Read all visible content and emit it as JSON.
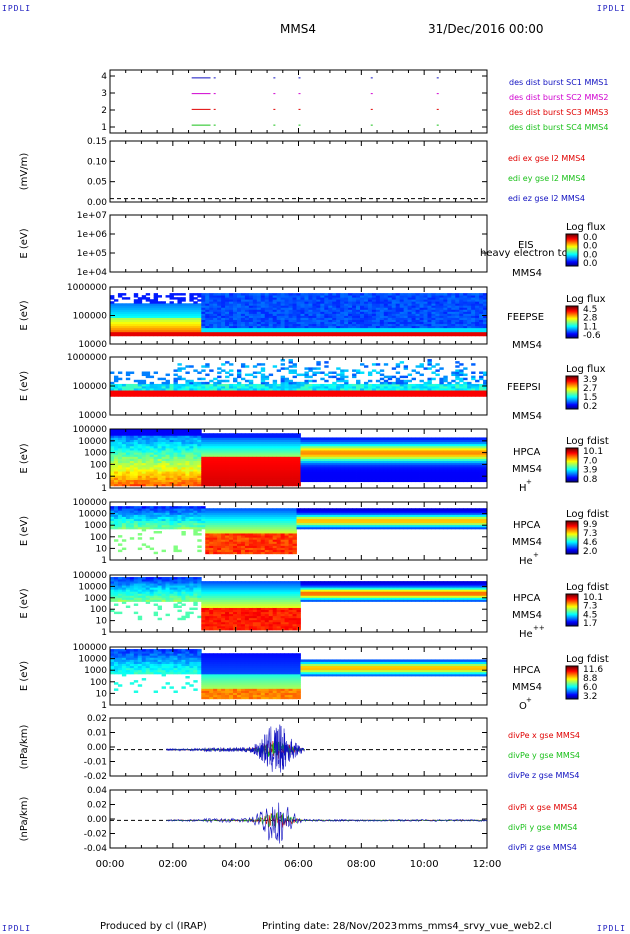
{
  "corner_label": "IPDLI",
  "header": {
    "spacecraft": "MMS4",
    "date": "31/Dec/2016 00:00"
  },
  "footer": {
    "producer": "Produced by cl (IRAP)",
    "printing": "Printing date: 28/Nov/2023",
    "script": "mms_mms4_srvy_vue_web2.cl"
  },
  "colors": {
    "red": "#e00000",
    "green": "#18c018",
    "blue": "#1010c0",
    "magenta": "#d000d0",
    "dashed": "#000000"
  },
  "chart_data": {
    "type": "multi-panel",
    "x_range_hours": [
      0,
      12
    ],
    "x_ticks": [
      "00:00",
      "02:00",
      "04:00",
      "06:00",
      "08:00",
      "10:00",
      "12:00"
    ],
    "panels": [
      {
        "id": "burst",
        "type": "line",
        "ylabel": "",
        "yticks": [
          "4",
          "3",
          "2",
          "1"
        ],
        "ylim": [
          0.5,
          4.5
        ],
        "series": [
          {
            "name": "des dist burst SC1 MMS1",
            "y": 4,
            "color": "blue",
            "intervals": [
              [
                2.6,
                3.2
              ],
              [
                3.3,
                3.35
              ],
              [
                5.2,
                5.25
              ],
              [
                6.0,
                6.05
              ],
              [
                8.3,
                8.35
              ],
              [
                10.4,
                10.45
              ]
            ]
          },
          {
            "name": "des dist burst SC2 MMS2",
            "y": 3,
            "color": "magenta",
            "intervals": [
              [
                2.6,
                3.2
              ],
              [
                3.3,
                3.35
              ],
              [
                5.2,
                5.25
              ],
              [
                6.0,
                6.05
              ],
              [
                8.3,
                8.35
              ],
              [
                10.4,
                10.45
              ]
            ]
          },
          {
            "name": "des dist burst SC3 MMS3",
            "y": 2,
            "color": "red",
            "intervals": [
              [
                2.6,
                3.2
              ],
              [
                3.3,
                3.35
              ],
              [
                5.2,
                5.25
              ],
              [
                6.0,
                6.05
              ],
              [
                8.3,
                8.35
              ],
              [
                10.4,
                10.45
              ]
            ]
          },
          {
            "name": "des dist burst SC4 MMS4",
            "y": 1,
            "color": "green",
            "intervals": [
              [
                2.6,
                3.2
              ],
              [
                3.3,
                3.35
              ],
              [
                5.2,
                5.25
              ],
              [
                6.0,
                6.05
              ],
              [
                8.3,
                8.35
              ],
              [
                10.4,
                10.45
              ]
            ]
          }
        ],
        "legend_colors_topdown": [
          "blue",
          "magenta",
          "red",
          "green"
        ]
      },
      {
        "id": "edi",
        "type": "line",
        "ylabel": "(mV/m)",
        "yticks": [
          "0.15",
          "0.10",
          "0.05",
          "0.00"
        ],
        "ylim": [
          -0.01,
          0.17
        ],
        "series": [
          {
            "name": "edi ex gse l2 MMS4",
            "color": "red"
          },
          {
            "name": "edi ey gse l2 MMS4",
            "color": "green"
          },
          {
            "name": "edi ez gse l2 MMS4",
            "color": "blue"
          }
        ]
      },
      {
        "id": "eis",
        "type": "heatmap",
        "ylabel": "E (eV)",
        "yticks": [
          "1e+07",
          "1e+06",
          "1e+05",
          "1e+04"
        ],
        "label": [
          "EIS",
          "MMS4"
        ],
        "overlay_text": "heavy electron to",
        "cbar_title": "Log flux",
        "cbar_ticks": [
          "0.0",
          "0.0",
          "0.0",
          "0.0"
        ],
        "profile": "empty"
      },
      {
        "id": "feeps_e",
        "type": "heatmap",
        "ylabel": "E (eV)",
        "yticks": [
          "1000000",
          "100000",
          "10000"
        ],
        "label": [
          "FEEPSE",
          "MMS4"
        ],
        "cbar_title": "Log flux",
        "cbar_ticks": [
          "4.5",
          "2.8",
          "1.1",
          "-0.6"
        ],
        "profile": "feepse"
      },
      {
        "id": "feeps_i",
        "type": "heatmap",
        "ylabel": "E (eV)",
        "yticks": [
          "1000000",
          "100000",
          "10000"
        ],
        "label": [
          "FEEPSI",
          "MMS4"
        ],
        "cbar_title": "Log flux",
        "cbar_ticks": [
          "3.9",
          "2.7",
          "1.5",
          "0.2"
        ],
        "profile": "feepsi"
      },
      {
        "id": "hpca_h",
        "type": "heatmap",
        "ylabel": "E (eV)",
        "yticks": [
          "100000",
          "10000",
          "1000",
          "100",
          "10",
          "1"
        ],
        "label": [
          "HPCA",
          "MMS4",
          "H",
          "+"
        ],
        "cbar_title": "Log fdist",
        "cbar_ticks": [
          "10.1",
          "7.0",
          "3.9",
          "0.8"
        ],
        "profile": "hpca_h"
      },
      {
        "id": "hpca_he",
        "type": "heatmap",
        "ylabel": "E (eV)",
        "yticks": [
          "100000",
          "10000",
          "1000",
          "100",
          "10",
          "1"
        ],
        "label": [
          "HPCA",
          "MMS4",
          "He",
          "+"
        ],
        "cbar_title": "Log fdist",
        "cbar_ticks": [
          "9.9",
          "7.3",
          "4.6",
          "2.0"
        ],
        "profile": "hpca_he"
      },
      {
        "id": "hpca_hepp",
        "type": "heatmap",
        "ylabel": "E (eV)",
        "yticks": [
          "100000",
          "10000",
          "1000",
          "100",
          "10",
          "1"
        ],
        "label": [
          "HPCA",
          "MMS4",
          "He",
          "++"
        ],
        "cbar_title": "Log fdist",
        "cbar_ticks": [
          "10.1",
          "7.3",
          "4.5",
          "1.7"
        ],
        "profile": "hpca_hepp"
      },
      {
        "id": "hpca_o",
        "type": "heatmap",
        "ylabel": "E (eV)",
        "yticks": [
          "100000",
          "10000",
          "1000",
          "100",
          "10",
          "1"
        ],
        "label": [
          "HPCA",
          "MMS4",
          "O",
          "+"
        ],
        "cbar_title": "Log fdist",
        "cbar_ticks": [
          "11.6",
          "8.8",
          "6.0",
          "3.2"
        ],
        "profile": "hpca_o"
      },
      {
        "id": "divpe",
        "type": "line",
        "ylabel": "(nPa/km)",
        "yticks": [
          "0.02",
          "0.01",
          "0.00",
          "-0.01",
          "-0.02"
        ],
        "ylim": [
          -0.025,
          0.03
        ],
        "series": [
          {
            "name": "divPe x gse MMS4",
            "color": "red"
          },
          {
            "name": "divPe y gse MMS4",
            "color": "green"
          },
          {
            "name": "divPe z gse MMS4",
            "color": "blue"
          }
        ],
        "peak_amplitude": 0.025,
        "active_range": [
          1.8,
          6.2
        ]
      },
      {
        "id": "divpi",
        "type": "line",
        "ylabel": "(nPa/km)",
        "yticks": [
          "0.04",
          "0.02",
          "0.00",
          "-0.02",
          "-0.04"
        ],
        "ylim": [
          -0.05,
          0.055
        ],
        "series": [
          {
            "name": "divPi x gse MMS4",
            "color": "red"
          },
          {
            "name": "divPi y gse MMS4",
            "color": "green"
          },
          {
            "name": "divPi z gse MMS4",
            "color": "blue"
          }
        ],
        "peak_amplitude": 0.045,
        "active_range": [
          1.8,
          12.0
        ]
      }
    ]
  }
}
